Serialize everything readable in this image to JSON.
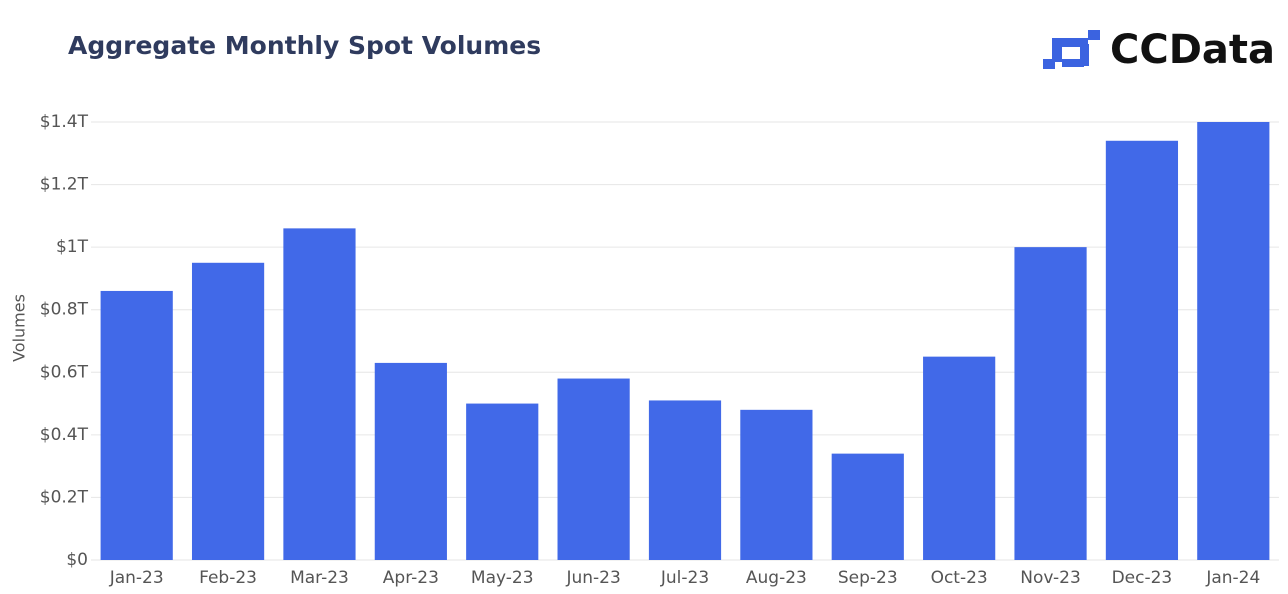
{
  "chart_data": {
    "type": "bar",
    "title": "Aggregate Monthly Spot Volumes",
    "logo_text": "CCData",
    "y_label": "Volumes",
    "categories": [
      "Jan-23",
      "Feb-23",
      "Mar-23",
      "Apr-23",
      "May-23",
      "Jun-23",
      "Jul-23",
      "Aug-23",
      "Sep-23",
      "Oct-23",
      "Nov-23",
      "Dec-23",
      "Jan-24"
    ],
    "values": [
      0.86,
      0.95,
      1.06,
      0.63,
      0.5,
      0.58,
      0.51,
      0.48,
      0.34,
      0.65,
      1.0,
      1.34,
      1.4
    ],
    "color": "#4169e8",
    "ylim": [
      0,
      1.4
    ],
    "yticks": [
      {
        "value": 0,
        "label": "$0"
      },
      {
        "value": 0.2,
        "label": "$0.2T"
      },
      {
        "value": 0.4,
        "label": "$0.4T"
      },
      {
        "value": 0.6,
        "label": "$0.6T"
      },
      {
        "value": 0.8,
        "label": "$0.8T"
      },
      {
        "value": 1,
        "label": "$1T"
      },
      {
        "value": 1.2,
        "label": "$1.2T"
      },
      {
        "value": 1.4,
        "label": "$1.4T"
      }
    ],
    "grid": true
  }
}
